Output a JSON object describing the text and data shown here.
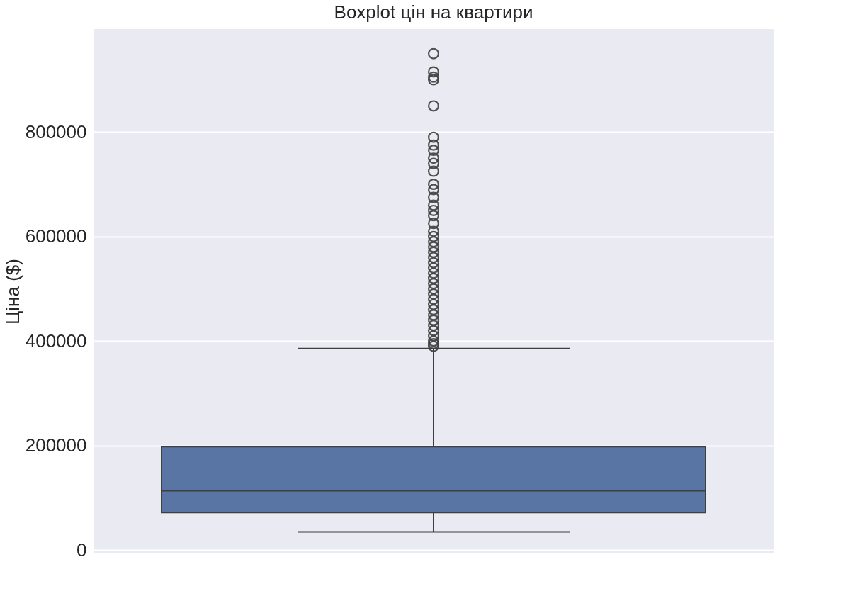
{
  "chart_data": {
    "type": "box",
    "title": "Boxplot цін на квартири",
    "ylabel": "Ціна ($)",
    "categories": [
      null
    ],
    "series": [
      {
        "color": "#5875a4",
        "boxes": [
          {
            "low": 35000,
            "q1": 71700,
            "median": 113400,
            "q3": 198000,
            "high": 385700,
            "outliers": [
              390000,
              395000,
              400000,
              410000,
              420000,
              430000,
              440000,
              450000,
              460000,
              470000,
              480000,
              490000,
              500000,
              510000,
              520000,
              530000,
              540000,
              550000,
              560000,
              570000,
              580000,
              590000,
              600000,
              610000,
              625000,
              640000,
              650000,
              660000,
              675000,
              690000,
              700000,
              725000,
              740000,
              750000,
              765000,
              775000,
              790000,
              850000,
              900000,
              905000,
              915000,
              950000
            ]
          }
        ]
      }
    ],
    "ylim": [
      -6500,
      997000
    ],
    "yticks": [
      0,
      200000,
      400000,
      600000,
      800000
    ],
    "grid": "y",
    "tick_labels": "y",
    "marker": "circle"
  }
}
